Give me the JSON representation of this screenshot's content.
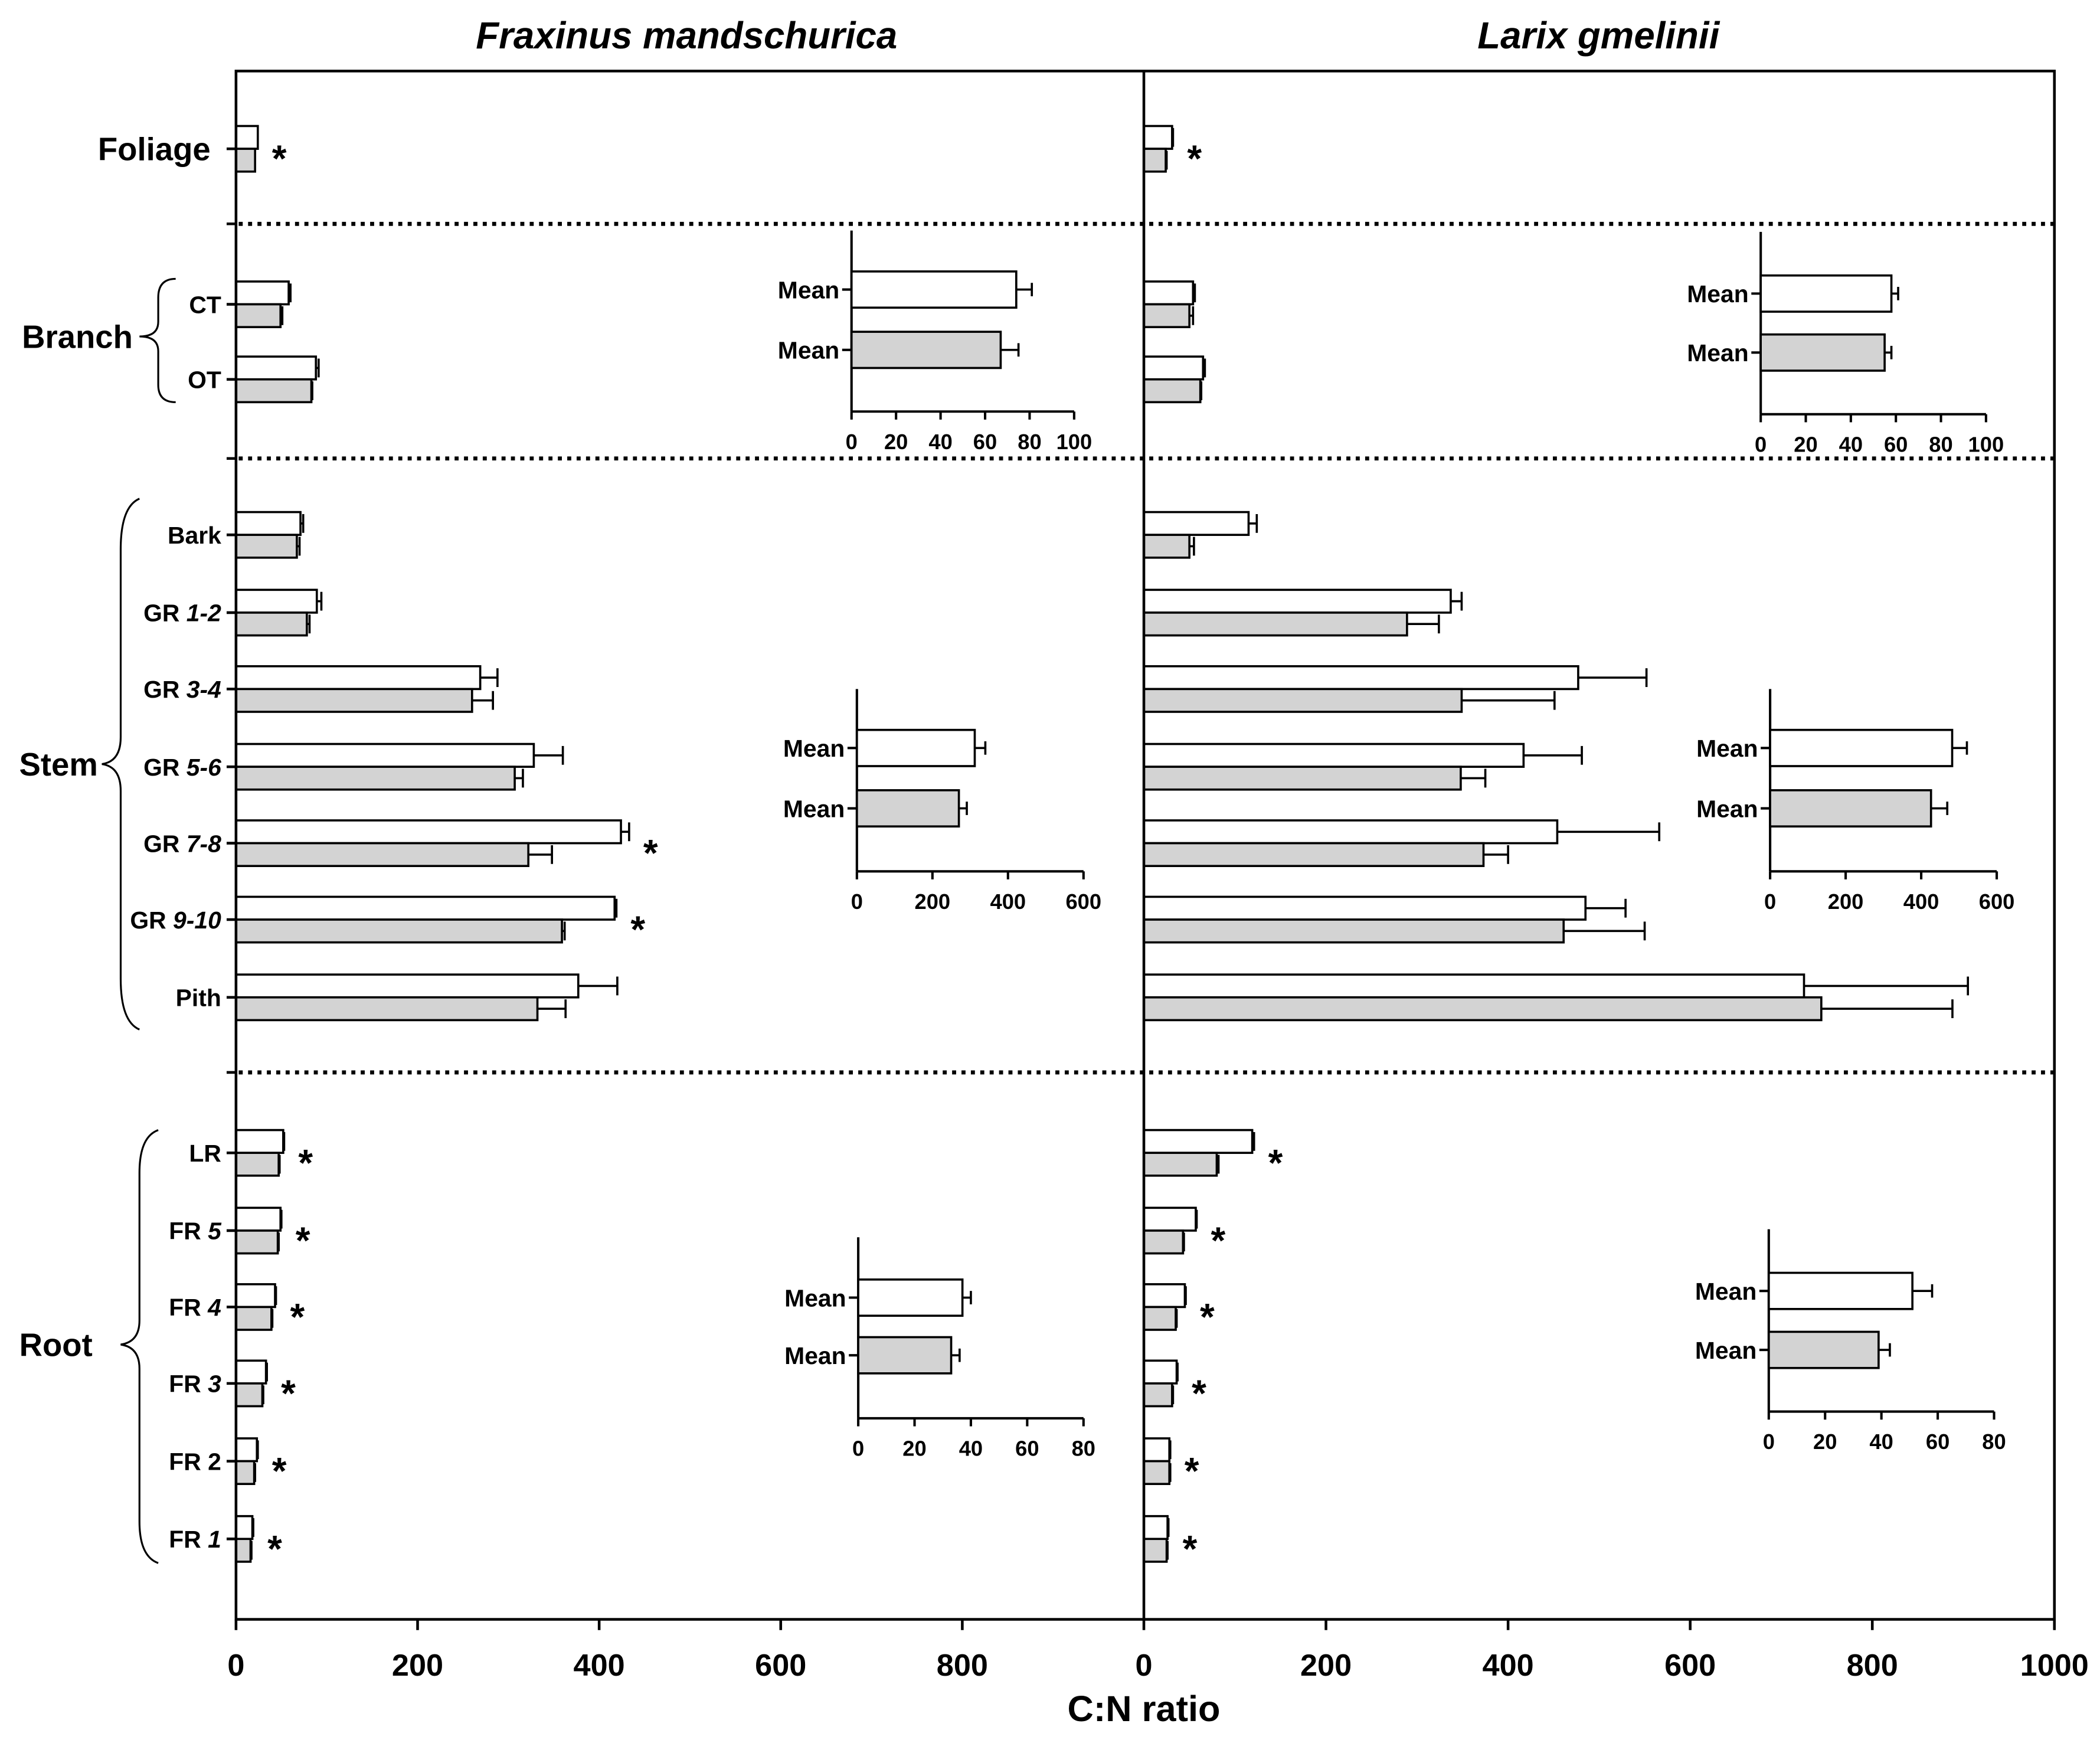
{
  "chart_data": {
    "type": "bar",
    "xlabel": "C:N ratio",
    "xlim": [
      0,
      1000
    ],
    "series_colors": [
      "#ffffff",
      "#d3d3d3"
    ],
    "panels": [
      {
        "title": "Fraxinus mandschurica",
        "xticks": [
          0,
          200,
          400,
          600,
          800
        ]
      },
      {
        "title": "Larix gmelinii",
        "xticks": [
          0,
          200,
          400,
          600,
          800,
          1000
        ]
      }
    ],
    "sections": [
      {
        "label": "Foliage",
        "categories": [
          {
            "data": [
              {
                "values": [
                  24,
                  21
                ],
                "errors": [
                  0,
                  0
                ],
                "sig": "*"
              },
              {
                "values": [
                  31,
                  24
                ],
                "errors": [
                  1,
                  1
                ],
                "sig": "*"
              }
            ]
          }
        ]
      },
      {
        "label": "Branch",
        "categories": [
          {
            "label": "CT",
            "data": [
              {
                "values": [
                  58,
                  49
                ],
                "errors": [
                  2,
                  2
                ]
              },
              {
                "values": [
                  54,
                  50
                ],
                "errors": [
                  2,
                  4
                ]
              }
            ]
          },
          {
            "label": "OT",
            "data": [
              {
                "values": [
                  88,
                  83
                ],
                "errors": [
                  3,
                  1
                ]
              },
              {
                "values": [
                  65,
                  62
                ],
                "errors": [
                  2,
                  1
                ]
              }
            ]
          }
        ],
        "insets": [
          {
            "xlim": [
              0,
              100
            ],
            "xticks": [
              0,
              20,
              40,
              60,
              80,
              100
            ],
            "labels": [
              "Mean",
              "Mean"
            ],
            "values": [
              74,
              67
            ],
            "errors": [
              7,
              8
            ]
          },
          {
            "xlim": [
              0,
              100
            ],
            "xticks": [
              0,
              20,
              40,
              60,
              80,
              100
            ],
            "labels": [
              "Mean",
              "Mean"
            ],
            "values": [
              58,
              55
            ],
            "errors": [
              3,
              3
            ]
          }
        ]
      },
      {
        "label": "Stem",
        "categories": [
          {
            "label": "Bark",
            "data": [
              {
                "values": [
                  71,
                  67
                ],
                "errors": [
                  3,
                  3
                ]
              },
              {
                "values": [
                  115,
                  50
                ],
                "errors": [
                  9,
                  5
                ]
              }
            ]
          },
          {
            "label": "GR",
            "label_num": "1-2",
            "data": [
              {
                "values": [
                  89,
                  78
                ],
                "errors": [
                  5,
                  3
                ]
              },
              {
                "values": [
                  337,
                  289
                ],
                "errors": [
                  12,
                  35
                ]
              }
            ]
          },
          {
            "label": "GR",
            "label_num": "3-4",
            "data": [
              {
                "values": [
                  269,
                  260
                ],
                "errors": [
                  19,
                  23
                ]
              },
              {
                "values": [
                  477,
                  349
                ],
                "errors": [
                  75,
                  102
                ]
              }
            ]
          },
          {
            "label": "GR",
            "label_num": "5-6",
            "data": [
              {
                "values": [
                  328,
                  307
                ],
                "errors": [
                  32,
                  9
                ]
              },
              {
                "values": [
                  417,
                  348
                ],
                "errors": [
                  64,
                  27
                ]
              }
            ]
          },
          {
            "label": "GR",
            "label_num": "7-8",
            "data": [
              {
                "values": [
                  424,
                  322
                ],
                "errors": [
                  9,
                  26
                ],
                "sig": "*"
              },
              {
                "values": [
                  454,
                  373
                ],
                "errors": [
                  112,
                  27
                ]
              }
            ]
          },
          {
            "label": "GR",
            "label_num": "9-10",
            "data": [
              {
                "values": [
                  417,
                  359
                ],
                "errors": [
                  2,
                  3
                ],
                "sig": "*"
              },
              {
                "values": [
                  485,
                  461
                ],
                "errors": [
                  44,
                  89
                ]
              }
            ]
          },
          {
            "label": "Pith",
            "data": [
              {
                "values": [
                  377,
                  332
                ],
                "errors": [
                  43,
                  31
                ]
              },
              {
                "values": [
                  725,
                  744
                ],
                "errors": [
                  180,
                  144
                ]
              }
            ]
          }
        ],
        "insets": [
          {
            "xlim": [
              0,
              600
            ],
            "xticks": [
              0,
              200,
              400,
              600
            ],
            "labels": [
              "Mean",
              "Mean"
            ],
            "values": [
              312,
              270
            ],
            "errors": [
              28,
              21
            ]
          },
          {
            "xlim": [
              0,
              600
            ],
            "xticks": [
              0,
              200,
              400,
              600
            ],
            "labels": [
              "Mean",
              "Mean"
            ],
            "values": [
              482,
              426
            ],
            "errors": [
              39,
              43
            ]
          }
        ]
      },
      {
        "label": "Root",
        "categories": [
          {
            "label": "LR",
            "data": [
              {
                "values": [
                  52,
                  47
                ],
                "errors": [
                  1,
                  1
                ],
                "sig": "*"
              },
              {
                "values": [
                  119,
                  80
                ],
                "errors": [
                  2,
                  2
                ],
                "sig": "*"
              }
            ]
          },
          {
            "label": "FR",
            "label_num": "5",
            "data": [
              {
                "values": [
                  49,
                  46
                ],
                "errors": [
                  1,
                  1
                ],
                "sig": "*"
              },
              {
                "values": [
                  57,
                  43
                ],
                "errors": [
                  1,
                  1
                ],
                "sig": "*"
              }
            ]
          },
          {
            "label": "FR",
            "label_num": "4",
            "data": [
              {
                "values": [
                  43,
                  39
                ],
                "errors": [
                  1,
                  1
                ],
                "sig": "*"
              },
              {
                "values": [
                  45,
                  35
                ],
                "errors": [
                  1,
                  1
                ],
                "sig": "*"
              }
            ]
          },
          {
            "label": "FR",
            "label_num": "3",
            "data": [
              {
                "values": [
                  33,
                  29
                ],
                "errors": [
                  1,
                  1
                ],
                "sig": "*"
              },
              {
                "values": [
                  36,
                  31
                ],
                "errors": [
                  1,
                  1
                ],
                "sig": "*"
              }
            ]
          },
          {
            "label": "FR",
            "label_num": "2",
            "num_italic": false,
            "data": [
              {
                "values": [
                  23,
                  20
                ],
                "errors": [
                  1,
                  1
                ],
                "sig": "*"
              },
              {
                "values": [
                  28,
                  28
                ],
                "errors": [
                  1,
                  1
                ],
                "sig": "*"
              }
            ]
          },
          {
            "label": "FR",
            "label_num": "1",
            "data": [
              {
                "values": [
                  18,
                  16
                ],
                "errors": [
                  1,
                  1
                ],
                "sig": "*"
              },
              {
                "values": [
                  26,
                  25
                ],
                "errors": [
                  1,
                  1
                ],
                "sig": "*"
              }
            ]
          }
        ],
        "insets": [
          {
            "xlim": [
              0,
              80
            ],
            "xticks": [
              0,
              20,
              40,
              60,
              80
            ],
            "labels": [
              "Mean",
              "Mean"
            ],
            "values": [
              37,
              33
            ],
            "errors": [
              3,
              3
            ]
          },
          {
            "xlim": [
              0,
              80
            ],
            "xticks": [
              0,
              20,
              40,
              60,
              80
            ],
            "labels": [
              "Mean",
              "Mean"
            ],
            "values": [
              51,
              39
            ],
            "errors": [
              7,
              4
            ]
          }
        ]
      }
    ]
  }
}
